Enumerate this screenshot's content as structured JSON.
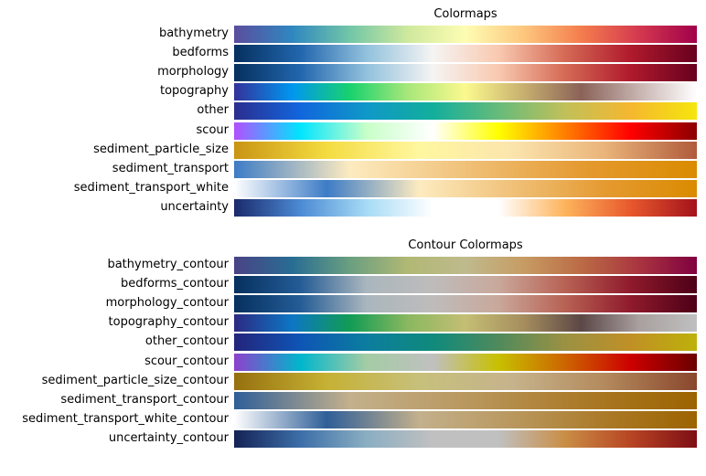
{
  "chart_data": [
    {
      "type": "heatmap",
      "title": "Colormaps",
      "colormaps": [
        {
          "name": "bathymetry",
          "colors": [
            "#5b4d9e",
            "#2f87c0",
            "#72c6a7",
            "#cfe99d",
            "#fdfdb3",
            "#fdc77e",
            "#f47d4d",
            "#d4384f",
            "#a1004a"
          ]
        },
        {
          "name": "bedforms",
          "colors": [
            "#06305f",
            "#2266ad",
            "#92c1dd",
            "#f5f4f3",
            "#f9c9b0",
            "#d56a56",
            "#b01a2c",
            "#67001f"
          ]
        },
        {
          "name": "morphology",
          "colors": [
            "#06305f",
            "#2266ad",
            "#92c1dd",
            "#f5f4f3",
            "#f9c9b0",
            "#d56a56",
            "#b01a2c",
            "#67001f"
          ]
        },
        {
          "name": "topography",
          "colors": [
            "#34319a",
            "#0096f0",
            "#18d26e",
            "#a8e77a",
            "#fbf98e",
            "#c8b06f",
            "#8a6258",
            "#c7b3b0",
            "#ffffff"
          ]
        },
        {
          "name": "other",
          "colors": [
            "#2c2d8f",
            "#1166dd",
            "#0f98c8",
            "#12ae9c",
            "#66bb7a",
            "#c0c05a",
            "#f5b72f",
            "#f5e60c"
          ]
        },
        {
          "name": "scour",
          "colors": [
            "#b250ff",
            "#00e5ff",
            "#c8ffc8",
            "#ffffff",
            "#ffff00",
            "#ff7f00",
            "#ff0000",
            "#8b0000"
          ]
        },
        {
          "name": "sediment_particle_size",
          "colors": [
            "#c99413",
            "#f4dc40",
            "#fff7a0",
            "#fbe5ad",
            "#eab47a",
            "#b05b3b"
          ]
        },
        {
          "name": "sediment_transport",
          "colors": [
            "#3d7cc6",
            "#fdebc0",
            "#f0c179",
            "#e59a31",
            "#da8b00"
          ]
        },
        {
          "name": "sediment_transport_white",
          "colors": [
            "#ffffff",
            "#3d7cc6",
            "#fdebc0",
            "#f0c179",
            "#e59a31",
            "#da8b00"
          ]
        },
        {
          "name": "uncertainty",
          "colors": [
            "#1a2a6c",
            "#4c8ad4",
            "#a6dbf5",
            "#ffffff",
            "#ffffff",
            "#fdb45c",
            "#e8582d",
            "#a3121b"
          ]
        }
      ]
    },
    {
      "type": "heatmap",
      "title": "Contour Colormaps",
      "colormaps": [
        {
          "name": "bathymetry_contour",
          "colors": [
            "#4a4385",
            "#286d93",
            "#6a9f80",
            "#b1b874",
            "#bfba8d",
            "#c79c64",
            "#bb6b45",
            "#a93540",
            "#800040"
          ]
        },
        {
          "name": "bedforms_contour",
          "colors": [
            "#06305f",
            "#245c96",
            "#aab6bd",
            "#bebcbb",
            "#c9a89b",
            "#b86254",
            "#8f1a2c",
            "#4d0017"
          ]
        },
        {
          "name": "morphology_contour",
          "colors": [
            "#06305f",
            "#245c96",
            "#aab6bd",
            "#bebcbb",
            "#c9a89b",
            "#b86254",
            "#8f1a2c",
            "#4d0017"
          ]
        },
        {
          "name": "topography_contour",
          "colors": [
            "#2c2a82",
            "#0d76c4",
            "#119c54",
            "#8ab860",
            "#c4be74",
            "#a68e5e",
            "#5b4746",
            "#a9a09f",
            "#c0c0c0"
          ]
        },
        {
          "name": "other_contour",
          "colors": [
            "#24247a",
            "#0e55b5",
            "#0c7d9f",
            "#0f8a7c",
            "#4f8a5c",
            "#9b9143",
            "#c09026",
            "#bdb10a"
          ]
        },
        {
          "name": "scour_contour",
          "colors": [
            "#8e40cc",
            "#00b6cc",
            "#a4cca4",
            "#c0c0c0",
            "#c8c000",
            "#cc6600",
            "#cc0000",
            "#6b0000"
          ]
        },
        {
          "name": "sediment_particle_size_contour",
          "colors": [
            "#96700f",
            "#c6b134",
            "#c7c07c",
            "#c6b38c",
            "#b38a5d",
            "#8a472d"
          ]
        },
        {
          "name": "sediment_transport_contour",
          "colors": [
            "#2f5f98",
            "#c3b08c",
            "#b9985f",
            "#ab7a28",
            "#9c6300"
          ]
        },
        {
          "name": "sediment_transport_white_contour",
          "colors": [
            "#ffffff",
            "#2f5f98",
            "#c3b08c",
            "#b9985f",
            "#ab7a28",
            "#9c6300"
          ]
        },
        {
          "name": "uncertainty_contour",
          "colors": [
            "#152356",
            "#3c6ea8",
            "#8aaec2",
            "#c0c0c0",
            "#c0c0c0",
            "#c98e46",
            "#b84523",
            "#7e0e15"
          ]
        }
      ]
    }
  ]
}
